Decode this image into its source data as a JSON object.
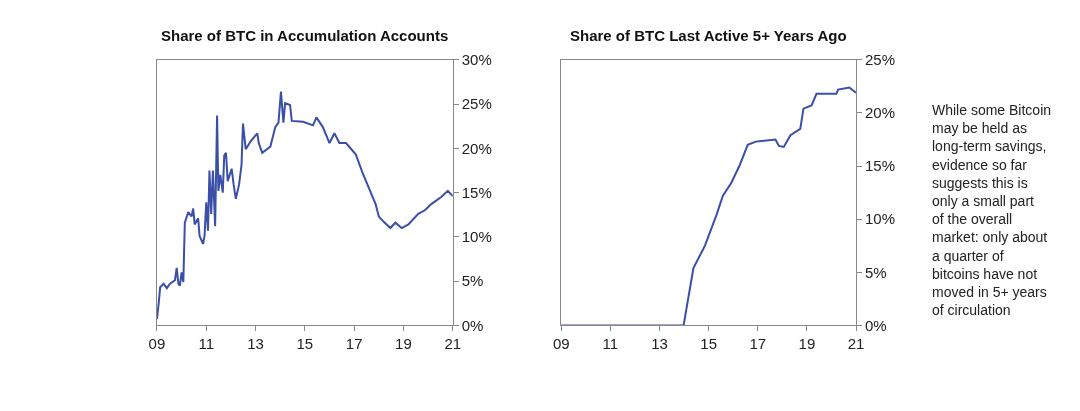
{
  "chart_data": [
    {
      "type": "line",
      "title": "Share of BTC in Accumulation Accounts",
      "color": "#3a4fa8",
      "marker": "none",
      "line_style": "solid",
      "x": [
        2009.0,
        2009.07,
        2009.13,
        2009.27,
        2009.4,
        2009.53,
        2009.73,
        2009.8,
        2009.87,
        2009.93,
        2010.0,
        2010.07,
        2010.13,
        2010.27,
        2010.4,
        2010.47,
        2010.53,
        2010.67,
        2010.73,
        2010.87,
        2010.93,
        2011.0,
        2011.07,
        2011.13,
        2011.2,
        2011.27,
        2011.36,
        2011.44,
        2011.49,
        2011.57,
        2011.67,
        2011.73,
        2011.8,
        2011.87,
        2012.03,
        2012.11,
        2012.2,
        2012.33,
        2012.43,
        2012.49,
        2012.6,
        2012.8,
        2013.07,
        2013.13,
        2013.27,
        2013.6,
        2013.8,
        2013.93,
        2014.03,
        2014.13,
        2014.2,
        2014.4,
        2014.47,
        2014.93,
        2015.33,
        2015.47,
        2015.73,
        2016.0,
        2016.2,
        2016.4,
        2016.67,
        2017.07,
        2017.33,
        2017.6,
        2017.87,
        2018.0,
        2018.2,
        2018.47,
        2018.67,
        2018.93,
        2019.2,
        2019.6,
        2019.87,
        2020.13,
        2020.53,
        2020.8,
        2021.0
      ],
      "values": [
        0.7,
        2.5,
        4.3,
        4.7,
        4.2,
        4.7,
        5.1,
        6.5,
        4.7,
        4.5,
        6.0,
        4.9,
        11.6,
        12.8,
        12.3,
        13.2,
        11.4,
        12.1,
        10.1,
        9.2,
        10.1,
        13.9,
        10.7,
        17.5,
        12.6,
        17.5,
        11.2,
        23.7,
        15.2,
        17.0,
        15.0,
        19.2,
        19.5,
        16.3,
        17.7,
        15.9,
        14.3,
        15.9,
        18.1,
        22.8,
        19.9,
        20.8,
        21.7,
        20.6,
        19.5,
        20.2,
        22.4,
        22.9,
        26.4,
        22.9,
        25.1,
        24.9,
        23.1,
        23.0,
        22.6,
        23.5,
        22.4,
        20.6,
        21.7,
        20.6,
        20.6,
        19.3,
        17.3,
        15.5,
        13.7,
        12.3,
        11.7,
        11.0,
        11.6,
        11.0,
        11.4,
        12.6,
        13.0,
        13.7,
        14.5,
        15.2,
        14.6
      ],
      "xlim": [
        2009,
        2021
      ],
      "xticks": [
        {
          "value": 2009,
          "label": "09"
        },
        {
          "value": 2011,
          "label": "11"
        },
        {
          "value": 2013,
          "label": "13"
        },
        {
          "value": 2015,
          "label": "15"
        },
        {
          "value": 2017,
          "label": "17"
        },
        {
          "value": 2019,
          "label": "19"
        },
        {
          "value": 2021,
          "label": "21"
        }
      ],
      "ylim": [
        0,
        30
      ],
      "yticks": [
        {
          "value": 0,
          "label": "0%"
        },
        {
          "value": 5,
          "label": "5%"
        },
        {
          "value": 10,
          "label": "10%"
        },
        {
          "value": 15,
          "label": "15%"
        },
        {
          "value": 20,
          "label": "20%"
        },
        {
          "value": 25,
          "label": "25%"
        },
        {
          "value": 30,
          "label": "30%"
        }
      ]
    },
    {
      "type": "line",
      "title": "Share of BTC Last Active 5+ Years Ago",
      "color": "#3a4fa8",
      "marker": "none",
      "line_style": "solid",
      "x": [
        2009.0,
        2013.98,
        2014.38,
        2014.85,
        2015.32,
        2015.58,
        2015.92,
        2016.25,
        2016.59,
        2016.92,
        2017.72,
        2017.86,
        2018.06,
        2018.33,
        2018.73,
        2018.86,
        2019.19,
        2019.39,
        2020.2,
        2020.27,
        2020.73,
        2021.0
      ],
      "values": [
        0,
        0,
        5.4,
        7.5,
        10.4,
        12.2,
        13.4,
        15.0,
        17.0,
        17.3,
        17.5,
        16.9,
        16.8,
        17.9,
        18.5,
        20.4,
        20.7,
        21.8,
        21.8,
        22.2,
        22.4,
        21.9
      ],
      "xlim": [
        2009,
        2021
      ],
      "xticks": [
        {
          "value": 2009,
          "label": "09"
        },
        {
          "value": 2011,
          "label": "11"
        },
        {
          "value": 2013,
          "label": "13"
        },
        {
          "value": 2015,
          "label": "15"
        },
        {
          "value": 2017,
          "label": "17"
        },
        {
          "value": 2019,
          "label": "19"
        },
        {
          "value": 2021,
          "label": "21"
        }
      ],
      "ylim": [
        0,
        25
      ],
      "yticks": [
        {
          "value": 0,
          "label": "0%"
        },
        {
          "value": 5,
          "label": "5%"
        },
        {
          "value": 10,
          "label": "10%"
        },
        {
          "value": 15,
          "label": "15%"
        },
        {
          "value": 20,
          "label": "20%"
        },
        {
          "value": 25,
          "label": "25%"
        }
      ],
      "annotations": [
        "While some Bitcoin may be held as long-term savings, evidence so far suggests this is only a small part of the overall market: only about a quarter of bitcoins have not moved in 5+ years of circulation"
      ]
    }
  ]
}
